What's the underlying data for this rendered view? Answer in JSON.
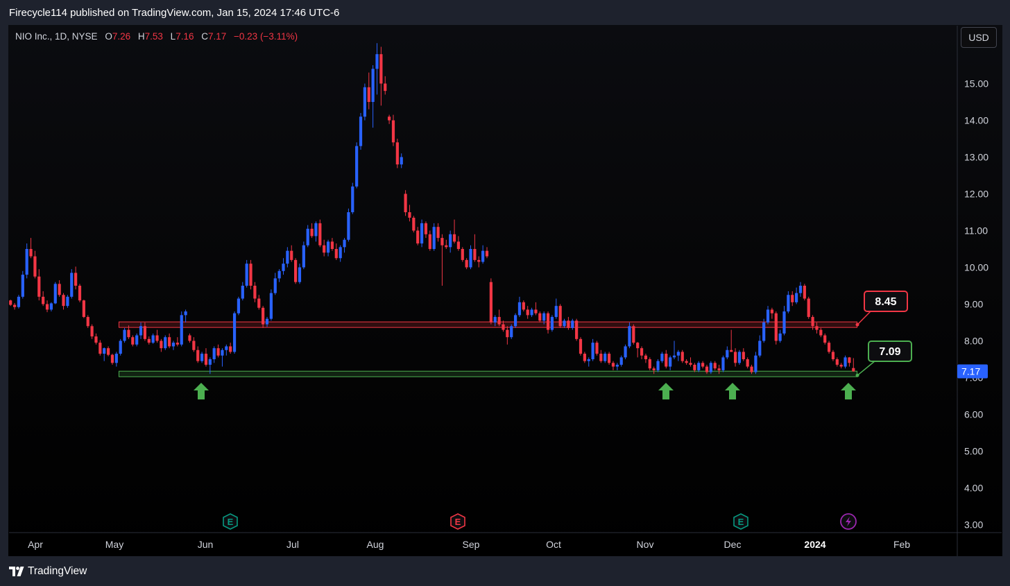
{
  "header": {
    "published_text": "Firecycle114 published on TradingView.com, Jan 15, 2024 17:46 UTC-6"
  },
  "legend": {
    "symbol": "NIO Inc., 1D, NYSE",
    "open_label": "O",
    "open": "7.26",
    "high_label": "H",
    "high": "7.53",
    "low_label": "L",
    "low": "7.16",
    "close_label": "C",
    "close": "7.17",
    "change": "−0.23 (−3.11%)"
  },
  "currency_button": "USD",
  "footer": {
    "brand": "TradingView"
  },
  "colors": {
    "up": "#2962ff",
    "down": "#f23645",
    "resistance": "#f23645",
    "support": "#4caf50",
    "earnings_green": "#089981",
    "earnings_red": "#f23645",
    "dividend": "#9c27b0"
  },
  "chart_data": {
    "type": "candlestick",
    "y_axis": {
      "ticks": [
        "3.00",
        "4.00",
        "5.00",
        "6.00",
        "7.00",
        "8.00",
        "9.00",
        "10.00",
        "11.00",
        "12.00",
        "13.00",
        "14.00",
        "15.00"
      ],
      "range": [
        2.8,
        16.3
      ]
    },
    "x_axis": {
      "labels": [
        "Apr",
        "May",
        "Jun",
        "Jul",
        "Aug",
        "Sep",
        "Oct",
        "Nov",
        "Dec",
        "2024",
        "Feb"
      ],
      "bold": [
        "2024"
      ]
    },
    "last_price": "7.17",
    "resistance": {
      "price": 8.45,
      "label": "8.45",
      "color": "#f23645"
    },
    "support": {
      "price": 7.09,
      "label": "7.09",
      "color": "#4caf50"
    },
    "markers": [
      {
        "type": "earnings",
        "label": "E",
        "near": "Jun",
        "color": "#089981"
      },
      {
        "type": "earnings",
        "label": "E",
        "near": "Sep",
        "color": "#f23645"
      },
      {
        "type": "earnings",
        "label": "E",
        "near": "Dec",
        "color": "#089981"
      },
      {
        "type": "event",
        "icon": "lightning-icon",
        "near": "Jan",
        "color": "#9c27b0"
      }
    ],
    "arrows": [
      "support-test-1",
      "support-test-2",
      "support-test-3",
      "support-test-4"
    ],
    "candles": [
      [
        9.1,
        9.12,
        8.95,
        8.98
      ],
      [
        8.98,
        9.03,
        8.85,
        8.92
      ],
      [
        8.92,
        9.25,
        8.88,
        9.2
      ],
      [
        9.2,
        9.9,
        9.15,
        9.8
      ],
      [
        9.8,
        10.65,
        9.7,
        10.5
      ],
      [
        10.5,
        10.8,
        10.25,
        10.3
      ],
      [
        10.3,
        10.45,
        9.7,
        9.75
      ],
      [
        9.75,
        9.95,
        9.1,
        9.2
      ],
      [
        9.2,
        9.35,
        8.95,
        9.0
      ],
      [
        9.0,
        9.1,
        8.78,
        8.85
      ],
      [
        8.85,
        9.05,
        8.8,
        9.02
      ],
      [
        9.02,
        9.6,
        9.0,
        9.55
      ],
      [
        9.55,
        9.65,
        9.2,
        9.25
      ],
      [
        9.25,
        9.3,
        8.85,
        8.95
      ],
      [
        8.95,
        9.25,
        8.9,
        9.2
      ],
      [
        9.2,
        9.95,
        9.15,
        9.85
      ],
      [
        9.85,
        10.02,
        9.4,
        9.5
      ],
      [
        9.5,
        9.55,
        9.05,
        9.1
      ],
      [
        9.1,
        9.12,
        8.62,
        8.65
      ],
      [
        8.65,
        8.7,
        8.35,
        8.4
      ],
      [
        8.4,
        8.45,
        8.05,
        8.12
      ],
      [
        8.12,
        8.2,
        7.9,
        7.95
      ],
      [
        7.95,
        8.02,
        7.6,
        7.65
      ],
      [
        7.65,
        7.82,
        7.45,
        7.8
      ],
      [
        7.8,
        7.85,
        7.58,
        7.62
      ],
      [
        7.62,
        7.65,
        7.35,
        7.4
      ],
      [
        7.4,
        7.7,
        7.3,
        7.65
      ],
      [
        7.65,
        8.05,
        7.6,
        8.0
      ],
      [
        8.0,
        8.35,
        7.95,
        8.3
      ],
      [
        8.3,
        8.42,
        8.05,
        8.1
      ],
      [
        8.1,
        8.15,
        7.85,
        7.9
      ],
      [
        7.9,
        8.2,
        7.85,
        8.15
      ],
      [
        8.15,
        8.5,
        8.05,
        8.4
      ],
      [
        8.4,
        8.5,
        8.0,
        8.05
      ],
      [
        8.05,
        8.12,
        7.9,
        7.95
      ],
      [
        7.95,
        8.2,
        7.92,
        8.15
      ],
      [
        8.15,
        8.3,
        7.95,
        8.0
      ],
      [
        8.0,
        8.05,
        7.7,
        7.8
      ],
      [
        7.8,
        8.15,
        7.75,
        8.1
      ],
      [
        8.1,
        8.2,
        7.8,
        7.85
      ],
      [
        7.85,
        8.0,
        7.75,
        7.95
      ],
      [
        7.95,
        8.1,
        7.85,
        7.9
      ],
      [
        7.9,
        8.8,
        7.85,
        8.7
      ],
      [
        8.7,
        8.85,
        8.5,
        8.8
      ],
      [
        8.15,
        8.2,
        7.95,
        8.0
      ],
      [
        8.0,
        8.1,
        7.7,
        7.75
      ],
      [
        7.75,
        7.85,
        7.4,
        7.45
      ],
      [
        7.45,
        7.7,
        7.4,
        7.65
      ],
      [
        7.65,
        7.8,
        7.3,
        7.35
      ],
      [
        7.35,
        7.55,
        7.1,
        7.5
      ],
      [
        7.5,
        7.85,
        7.4,
        7.8
      ],
      [
        7.8,
        7.9,
        7.55,
        7.6
      ],
      [
        7.6,
        7.8,
        7.3,
        7.75
      ],
      [
        7.75,
        7.9,
        7.6,
        7.85
      ],
      [
        7.85,
        7.95,
        7.65,
        7.7
      ],
      [
        7.7,
        8.8,
        7.65,
        8.75
      ],
      [
        8.75,
        9.2,
        8.7,
        9.15
      ],
      [
        9.15,
        9.6,
        9.1,
        9.5
      ],
      [
        9.5,
        10.2,
        9.45,
        10.1
      ],
      [
        10.1,
        10.2,
        9.4,
        9.5
      ],
      [
        9.5,
        9.6,
        9.05,
        9.15
      ],
      [
        9.15,
        9.25,
        8.85,
        8.9
      ],
      [
        8.9,
        8.95,
        8.35,
        8.45
      ],
      [
        8.45,
        8.65,
        8.38,
        8.6
      ],
      [
        8.6,
        9.4,
        8.55,
        9.3
      ],
      [
        9.3,
        9.85,
        9.25,
        9.7
      ],
      [
        9.7,
        9.95,
        9.6,
        9.9
      ],
      [
        9.9,
        10.25,
        9.8,
        10.1
      ],
      [
        10.1,
        10.55,
        10.0,
        10.45
      ],
      [
        10.45,
        10.6,
        10.15,
        10.2
      ],
      [
        10.2,
        10.25,
        9.55,
        9.6
      ],
      [
        9.6,
        10.1,
        9.55,
        10.0
      ],
      [
        10.0,
        10.7,
        9.95,
        10.6
      ],
      [
        10.6,
        11.15,
        10.55,
        11.05
      ],
      [
        11.05,
        11.2,
        10.8,
        10.85
      ],
      [
        10.85,
        11.25,
        10.7,
        11.2
      ],
      [
        11.2,
        11.3,
        10.55,
        10.6
      ],
      [
        10.6,
        10.75,
        10.3,
        10.4
      ],
      [
        10.4,
        10.75,
        10.3,
        10.7
      ],
      [
        10.7,
        10.8,
        10.45,
        10.5
      ],
      [
        10.5,
        10.65,
        10.2,
        10.25
      ],
      [
        10.25,
        10.6,
        10.15,
        10.55
      ],
      [
        10.55,
        10.8,
        10.4,
        10.75
      ],
      [
        10.75,
        11.6,
        10.7,
        11.5
      ],
      [
        11.5,
        12.3,
        11.45,
        12.2
      ],
      [
        12.2,
        13.4,
        12.15,
        13.3
      ],
      [
        13.3,
        14.2,
        13.2,
        14.1
      ],
      [
        14.1,
        15.0,
        14.0,
        14.9
      ],
      [
        14.9,
        15.3,
        14.3,
        14.5
      ],
      [
        14.5,
        15.5,
        13.8,
        15.4
      ],
      [
        15.4,
        16.1,
        14.7,
        15.8
      ],
      [
        15.8,
        16.0,
        14.4,
        15.0
      ],
      [
        15.0,
        15.2,
        14.7,
        14.8
      ],
      [
        14.1,
        14.15,
        13.9,
        14.0
      ],
      [
        14.0,
        14.15,
        13.3,
        13.4
      ],
      [
        13.4,
        13.5,
        12.7,
        12.8
      ],
      [
        12.8,
        13.1,
        12.7,
        13.0
      ],
      [
        12.0,
        12.1,
        11.4,
        11.5
      ],
      [
        11.5,
        11.7,
        11.25,
        11.35
      ],
      [
        11.35,
        11.4,
        10.95,
        11.0
      ],
      [
        11.0,
        11.1,
        10.6,
        10.65
      ],
      [
        10.65,
        11.3,
        10.55,
        11.2
      ],
      [
        11.2,
        11.25,
        10.8,
        10.9
      ],
      [
        10.9,
        11.0,
        10.45,
        10.5
      ],
      [
        10.5,
        11.2,
        10.45,
        11.1
      ],
      [
        11.1,
        11.2,
        10.7,
        10.8
      ],
      [
        10.8,
        10.9,
        9.5,
        10.6
      ],
      [
        10.6,
        10.75,
        10.5,
        10.55
      ],
      [
        10.55,
        11.0,
        10.4,
        10.9
      ],
      [
        10.9,
        11.3,
        10.65,
        10.7
      ],
      [
        10.7,
        10.85,
        10.45,
        10.5
      ],
      [
        10.5,
        10.55,
        10.15,
        10.2
      ],
      [
        10.2,
        10.25,
        9.95,
        10.0
      ],
      [
        10.0,
        10.6,
        9.95,
        10.5
      ],
      [
        10.5,
        10.9,
        10.15,
        10.2
      ],
      [
        10.2,
        10.3,
        10.0,
        10.15
      ],
      [
        10.15,
        10.6,
        10.1,
        10.45
      ],
      [
        10.45,
        10.55,
        10.25,
        10.3
      ],
      [
        9.6,
        9.7,
        8.45,
        8.5
      ],
      [
        8.5,
        8.7,
        8.4,
        8.65
      ],
      [
        8.65,
        8.85,
        8.4,
        8.45
      ],
      [
        8.45,
        8.55,
        8.25,
        8.3
      ],
      [
        8.3,
        8.4,
        7.9,
        8.1
      ],
      [
        8.1,
        8.45,
        8.05,
        8.4
      ],
      [
        8.4,
        8.75,
        8.35,
        8.7
      ],
      [
        8.7,
        9.2,
        8.65,
        9.05
      ],
      [
        9.05,
        9.1,
        8.8,
        8.85
      ],
      [
        8.85,
        8.95,
        8.6,
        8.7
      ],
      [
        8.7,
        8.9,
        8.65,
        8.85
      ],
      [
        8.85,
        9.05,
        8.7,
        8.75
      ],
      [
        8.75,
        8.8,
        8.5,
        8.55
      ],
      [
        8.55,
        8.8,
        8.45,
        8.75
      ],
      [
        8.75,
        8.8,
        8.2,
        8.3
      ],
      [
        8.3,
        8.7,
        8.25,
        8.65
      ],
      [
        8.65,
        9.15,
        8.6,
        8.95
      ],
      [
        8.95,
        9.0,
        8.35,
        8.4
      ],
      [
        8.4,
        8.6,
        8.35,
        8.55
      ],
      [
        8.55,
        8.65,
        8.3,
        8.35
      ],
      [
        8.35,
        8.6,
        8.3,
        8.55
      ],
      [
        8.55,
        8.6,
        8.0,
        8.05
      ],
      [
        8.05,
        8.1,
        7.6,
        7.65
      ],
      [
        7.65,
        7.7,
        7.4,
        7.45
      ],
      [
        7.45,
        7.55,
        7.3,
        7.5
      ],
      [
        7.5,
        8.05,
        7.45,
        7.95
      ],
      [
        7.95,
        8.0,
        7.6,
        7.65
      ],
      [
        7.65,
        7.75,
        7.4,
        7.45
      ],
      [
        7.45,
        7.7,
        7.4,
        7.65
      ],
      [
        7.65,
        7.7,
        7.35,
        7.4
      ],
      [
        7.4,
        7.45,
        7.2,
        7.3
      ],
      [
        7.3,
        7.4,
        7.2,
        7.35
      ],
      [
        7.35,
        7.6,
        7.3,
        7.55
      ],
      [
        7.55,
        7.9,
        7.5,
        7.85
      ],
      [
        7.85,
        8.5,
        7.8,
        8.4
      ],
      [
        8.4,
        8.45,
        7.9,
        7.95
      ],
      [
        7.95,
        7.97,
        7.55,
        7.8
      ],
      [
        7.8,
        7.85,
        7.5,
        7.6
      ],
      [
        7.6,
        7.65,
        7.4,
        7.5
      ],
      [
        7.5,
        7.55,
        7.2,
        7.25
      ],
      [
        7.25,
        7.3,
        7.1,
        7.2
      ],
      [
        7.2,
        7.5,
        7.15,
        7.45
      ],
      [
        7.45,
        7.7,
        7.4,
        7.65
      ],
      [
        7.65,
        7.75,
        7.25,
        7.3
      ],
      [
        7.3,
        7.6,
        7.2,
        7.55
      ],
      [
        7.55,
        8.0,
        7.5,
        7.6
      ],
      [
        7.6,
        7.75,
        7.45,
        7.7
      ],
      [
        7.7,
        7.75,
        7.4,
        7.45
      ],
      [
        7.45,
        7.5,
        7.35,
        7.4
      ],
      [
        7.4,
        7.55,
        7.3,
        7.35
      ],
      [
        7.35,
        7.4,
        7.15,
        7.2
      ],
      [
        7.2,
        7.45,
        7.15,
        7.4
      ],
      [
        7.4,
        7.45,
        7.25,
        7.3
      ],
      [
        7.3,
        7.35,
        7.1,
        7.15
      ],
      [
        7.15,
        7.45,
        7.1,
        7.4
      ],
      [
        7.4,
        7.45,
        7.2,
        7.25
      ],
      [
        7.25,
        7.35,
        7.1,
        7.2
      ],
      [
        7.2,
        7.6,
        7.15,
        7.55
      ],
      [
        7.55,
        7.85,
        7.5,
        7.75
      ],
      [
        7.75,
        8.3,
        7.7,
        7.7
      ],
      [
        7.7,
        7.8,
        7.3,
        7.4
      ],
      [
        7.4,
        7.75,
        7.35,
        7.7
      ],
      [
        7.7,
        7.8,
        7.45,
        7.5
      ],
      [
        7.5,
        7.55,
        7.25,
        7.3
      ],
      [
        7.3,
        7.35,
        7.1,
        7.15
      ],
      [
        7.15,
        7.7,
        7.1,
        7.6
      ],
      [
        7.6,
        8.15,
        7.55,
        8.0
      ],
      [
        8.0,
        8.6,
        7.95,
        8.5
      ],
      [
        8.5,
        8.95,
        8.45,
        8.85
      ],
      [
        8.85,
        8.9,
        8.6,
        8.75
      ],
      [
        8.75,
        8.8,
        7.9,
        8.0
      ],
      [
        8.0,
        8.3,
        7.95,
        8.2
      ],
      [
        8.2,
        8.95,
        8.15,
        8.8
      ],
      [
        8.8,
        9.35,
        8.75,
        9.25
      ],
      [
        9.25,
        9.35,
        8.95,
        9.05
      ],
      [
        9.05,
        9.45,
        9.0,
        9.3
      ],
      [
        9.3,
        9.6,
        9.2,
        9.5
      ],
      [
        9.5,
        9.55,
        9.1,
        9.15
      ],
      [
        9.15,
        9.2,
        8.6,
        8.65
      ],
      [
        8.65,
        8.7,
        8.3,
        8.4
      ],
      [
        8.4,
        8.5,
        8.2,
        8.3
      ],
      [
        8.3,
        8.35,
        8.1,
        8.15
      ],
      [
        8.15,
        8.2,
        7.9,
        7.95
      ],
      [
        7.95,
        8.0,
        7.65,
        7.7
      ],
      [
        7.7,
        7.75,
        7.45,
        7.5
      ],
      [
        7.5,
        7.55,
        7.3,
        7.35
      ],
      [
        7.35,
        7.4,
        7.25,
        7.3
      ],
      [
        7.3,
        7.6,
        7.25,
        7.55
      ],
      [
        7.55,
        7.56,
        7.3,
        7.4
      ],
      [
        7.26,
        7.53,
        7.16,
        7.17
      ]
    ]
  }
}
